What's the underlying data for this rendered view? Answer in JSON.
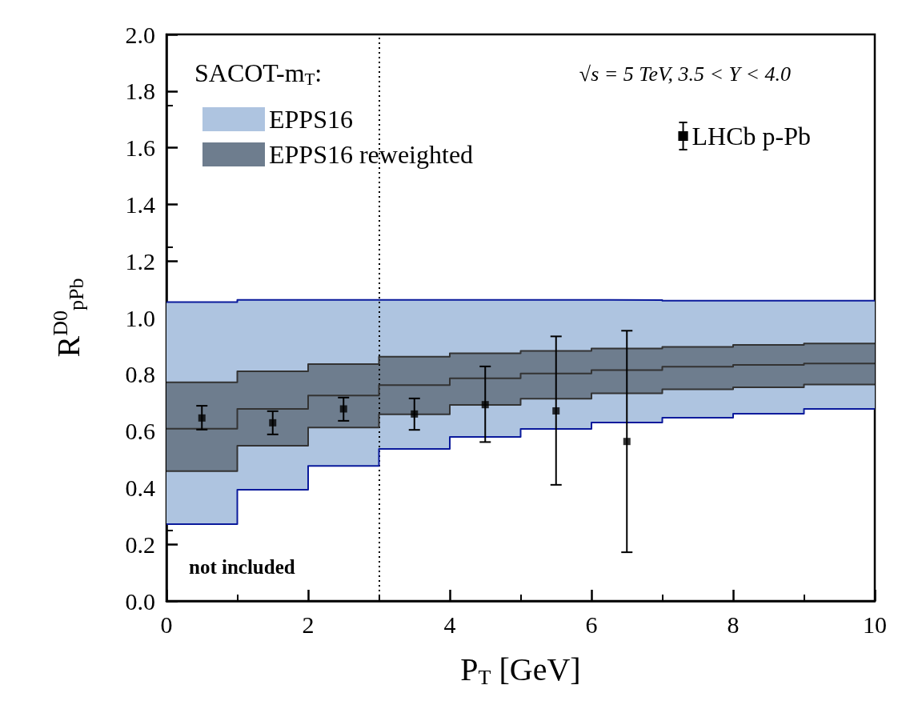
{
  "chart_data": {
    "type": "step",
    "subtitle": "√s = 5 TeV, 3.5 < Y < 4.0",
    "xlabel": "P$_{T}$ [GeV]",
    "ylabel": "R$^{D0}$$_{pPb}$",
    "legend_title": "SACOT-m$_{T}$:",
    "annotations": [
      "not included"
    ],
    "xlim": [
      0,
      10
    ],
    "xticks": [
      0,
      2,
      4,
      6,
      8,
      10
    ],
    "ylim": [
      0,
      2
    ],
    "yticks": [
      {
        "value": 0,
        "label": "0.0"
      },
      0.2,
      0.4,
      0.6,
      0.8,
      {
        "value": 1,
        "label": "1.0"
      },
      1.2,
      1.4,
      1.6,
      1.8,
      {
        "value": 2,
        "label": "2.0"
      }
    ],
    "grid": false,
    "legend": "top",
    "line_style": "solid",
    "ref_lines": [
      {
        "axis": "x",
        "value": 3,
        "line_style": "dotted",
        "color": "#000000"
      }
    ],
    "series": [
      {
        "name": "EPPS16",
        "color": "#aec4e0",
        "x": [
          0,
          1,
          2,
          3,
          4,
          5,
          6,
          7,
          8,
          9,
          10
        ],
        "values": [
          null,
          null,
          null,
          null,
          null,
          null,
          null,
          null,
          null,
          null,
          null
        ],
        "lower": [
          0.271,
          0.393,
          0.477,
          0.537,
          0.579,
          0.607,
          0.63,
          0.647,
          0.661,
          0.678,
          0.678
        ],
        "upper": [
          1.055,
          1.063,
          1.063,
          1.063,
          1.063,
          1.063,
          1.062,
          1.06,
          1.06,
          1.06,
          1.06
        ]
      },
      {
        "name": "EPPS16 reweighted",
        "color": "#6e7d8e",
        "x": [
          0,
          1,
          2,
          3,
          4,
          5,
          6,
          7,
          8,
          9,
          10
        ],
        "values": [
          null,
          null,
          null,
          null,
          null,
          null,
          null,
          null,
          null,
          null,
          null
        ],
        "lower": [
          0.458,
          0.548,
          0.612,
          0.659,
          0.692,
          0.714,
          0.733,
          0.747,
          0.754,
          0.764,
          0.764
        ],
        "upper": [
          0.772,
          0.811,
          0.836,
          0.862,
          0.874,
          0.883,
          0.891,
          0.897,
          0.904,
          0.909,
          0.909
        ]
      },
      {
        "color": "#0a1a9c",
        "x": [
          0,
          1,
          2,
          3,
          4,
          5,
          6,
          7,
          8,
          9,
          10
        ],
        "values": [
          1.055,
          1.063,
          1.063,
          1.063,
          1.063,
          1.063,
          1.062,
          1.06,
          1.06,
          1.06,
          1.06
        ]
      },
      {
        "color": "#0a1a9c",
        "x": [
          0,
          1,
          2,
          3,
          4,
          5,
          6,
          7,
          8,
          9,
          10
        ],
        "values": [
          0.271,
          0.393,
          0.477,
          0.537,
          0.579,
          0.607,
          0.63,
          0.647,
          0.661,
          0.678,
          0.678
        ]
      },
      {
        "color": "#333333",
        "x": [
          0,
          1,
          2,
          3,
          4,
          5,
          6,
          7,
          8,
          9,
          10
        ],
        "values": [
          0.772,
          0.811,
          0.836,
          0.862,
          0.874,
          0.883,
          0.891,
          0.897,
          0.904,
          0.909,
          0.909
        ]
      },
      {
        "color": "#333333",
        "x": [
          0,
          1,
          2,
          3,
          4,
          5,
          6,
          7,
          8,
          9,
          10
        ],
        "values": [
          0.608,
          0.678,
          0.725,
          0.762,
          0.786,
          0.803,
          0.815,
          0.827,
          0.833,
          0.838,
          0.838
        ]
      },
      {
        "color": "#333333",
        "x": [
          0,
          1,
          2,
          3,
          4,
          5,
          6,
          7,
          8,
          9,
          10
        ],
        "values": [
          0.458,
          0.548,
          0.612,
          0.659,
          0.692,
          0.714,
          0.733,
          0.747,
          0.754,
          0.764,
          0.764
        ]
      },
      {
        "name": "LHCb p-Pb",
        "type": "scatter",
        "color": "#000000",
        "marker": "square",
        "x": [
          0.5,
          1.5,
          2.5,
          3.5,
          4.5,
          5.5,
          6.5
        ],
        "values": [
          0.646,
          0.629,
          0.678,
          0.66,
          0.693,
          0.671,
          0.563
        ],
        "errors": [
          [
            0.605,
            0.689
          ],
          [
            0.588,
            0.67
          ],
          [
            0.636,
            0.718
          ],
          [
            0.604,
            0.715
          ],
          [
            0.561,
            0.828
          ],
          [
            0.41,
            0.934
          ],
          [
            0.172,
            0.954
          ]
        ]
      }
    ]
  }
}
